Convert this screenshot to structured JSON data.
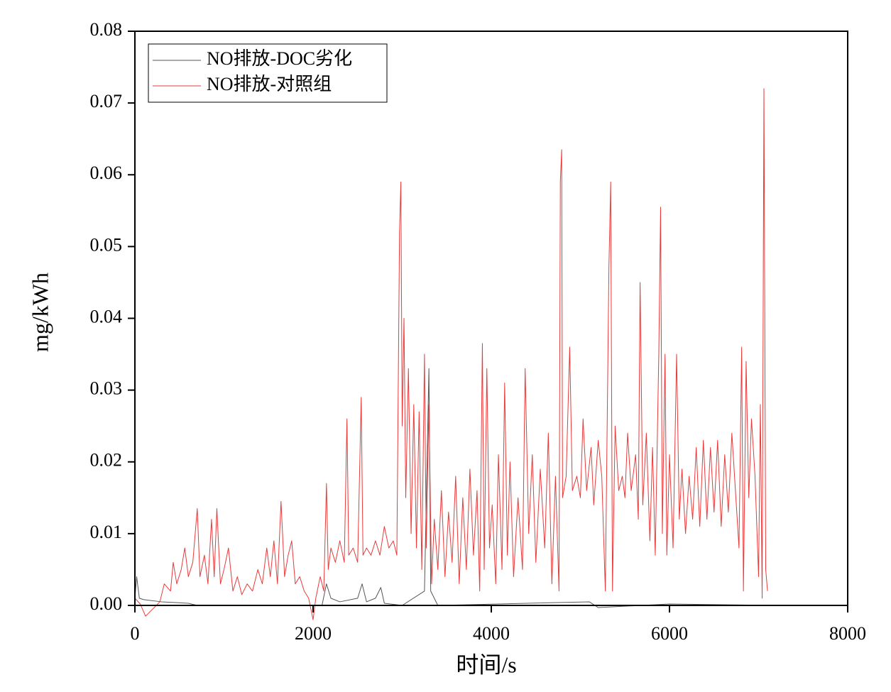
{
  "chart_data": {
    "type": "line",
    "xlabel": "时间/s",
    "ylabel": "mg/kWh",
    "xlim": [
      0,
      8000
    ],
    "xticks": [
      0,
      2000,
      4000,
      6000,
      8000
    ],
    "ylim": [
      0,
      0.08
    ],
    "yticks": [
      {
        "value": 0,
        "label": "0.00"
      },
      0.01,
      0.02,
      0.03,
      0.04,
      0.05,
      0.06,
      0.07,
      0.08
    ],
    "legend": "upper left",
    "series": [
      {
        "name": "NO排放-DOC劣化",
        "color": "#555555",
        "x": [
          0,
          20,
          50,
          100,
          300,
          600,
          700,
          2100,
          2150,
          2200,
          2300,
          2500,
          2550,
          2600,
          2700,
          2760,
          2800,
          3000,
          3250,
          3300,
          3320,
          3400,
          5100,
          5200,
          6000,
          7200
        ],
        "values": [
          0.001,
          0.004,
          0.001,
          0.0008,
          0.0005,
          0.0003,
          0,
          0,
          0.003,
          0.001,
          0.0005,
          0.001,
          0.003,
          0.0005,
          0.001,
          0.0025,
          0.0003,
          0,
          0.002,
          0.033,
          0.002,
          0,
          0.0005,
          -0.0003,
          0.0002,
          0
        ]
      },
      {
        "name": "NO排放-对照组",
        "color": "#e83a3a",
        "x": [
          0,
          60,
          120,
          200,
          280,
          330,
          400,
          430,
          470,
          520,
          560,
          600,
          650,
          700,
          730,
          780,
          820,
          860,
          890,
          920,
          960,
          1000,
          1050,
          1100,
          1150,
          1200,
          1260,
          1320,
          1380,
          1430,
          1480,
          1520,
          1560,
          1600,
          1640,
          1680,
          1720,
          1760,
          1800,
          1850,
          1900,
          1950,
          2000,
          2030,
          2080,
          2120,
          2150,
          2170,
          2200,
          2250,
          2300,
          2350,
          2380,
          2400,
          2450,
          2500,
          2540,
          2560,
          2600,
          2650,
          2700,
          2750,
          2800,
          2850,
          2900,
          2940,
          2970,
          2985,
          3000,
          3020,
          3040,
          3070,
          3100,
          3130,
          3160,
          3190,
          3220,
          3250,
          3270,
          3300,
          3330,
          3360,
          3400,
          3440,
          3480,
          3520,
          3560,
          3600,
          3640,
          3680,
          3720,
          3760,
          3800,
          3840,
          3870,
          3900,
          3920,
          3950,
          3980,
          4010,
          4050,
          4080,
          4120,
          4150,
          4180,
          4210,
          4250,
          4300,
          4350,
          4380,
          4420,
          4460,
          4500,
          4550,
          4600,
          4640,
          4680,
          4720,
          4760,
          4775,
          4790,
          4800,
          4840,
          4880,
          4910,
          4960,
          5000,
          5030,
          5070,
          5120,
          5150,
          5200,
          5240,
          5280,
          5320,
          5340,
          5360,
          5390,
          5430,
          5470,
          5500,
          5530,
          5570,
          5620,
          5650,
          5670,
          5700,
          5740,
          5780,
          5810,
          5840,
          5880,
          5900,
          5920,
          5950,
          5970,
          6000,
          6040,
          6080,
          6110,
          6140,
          6180,
          6220,
          6260,
          6300,
          6340,
          6380,
          6420,
          6460,
          6500,
          6540,
          6580,
          6620,
          6660,
          6700,
          6740,
          6780,
          6810,
          6830,
          6860,
          6890,
          6920,
          6960,
          7000,
          7020,
          7040,
          7060,
          7080,
          7100
        ],
        "values": [
          0.001,
          0.0002,
          -0.0015,
          -0.0005,
          0.0005,
          0.003,
          0.002,
          0.006,
          0.003,
          0.005,
          0.008,
          0.004,
          0.006,
          0.0135,
          0.004,
          0.007,
          0.003,
          0.012,
          0.004,
          0.0135,
          0.003,
          0.005,
          0.008,
          0.002,
          0.004,
          0.0015,
          0.003,
          0.002,
          0.005,
          0.003,
          0.008,
          0.004,
          0.009,
          0.003,
          0.0145,
          0.004,
          0.007,
          0.009,
          0.003,
          0.004,
          0.002,
          0.001,
          -0.002,
          0.001,
          0.004,
          0.002,
          0.017,
          0.005,
          0.008,
          0.006,
          0.009,
          0.006,
          0.026,
          0.007,
          0.008,
          0.006,
          0.029,
          0.007,
          0.008,
          0.007,
          0.009,
          0.007,
          0.011,
          0.008,
          0.009,
          0.007,
          0.052,
          0.059,
          0.025,
          0.04,
          0.015,
          0.033,
          0.01,
          0.028,
          0.008,
          0.027,
          0.005,
          0.035,
          0.008,
          0.028,
          0.003,
          0.012,
          0.005,
          0.016,
          0.004,
          0.013,
          0.006,
          0.018,
          0.003,
          0.015,
          0.005,
          0.019,
          0.007,
          0.016,
          0.002,
          0.0365,
          0.005,
          0.033,
          0.008,
          0.014,
          0.003,
          0.021,
          0.005,
          0.031,
          0.007,
          0.02,
          0.004,
          0.015,
          0.005,
          0.033,
          0.01,
          0.021,
          0.006,
          0.019,
          0.008,
          0.024,
          0.003,
          0.018,
          0.002,
          0.059,
          0.0635,
          0.015,
          0.018,
          0.036,
          0.016,
          0.018,
          0.015,
          0.026,
          0.016,
          0.022,
          0.014,
          0.023,
          0.018,
          0.002,
          0.047,
          0.059,
          0.002,
          0.025,
          0.016,
          0.018,
          0.015,
          0.024,
          0.016,
          0.021,
          0.012,
          0.045,
          0.014,
          0.024,
          0.009,
          0.022,
          0.007,
          0.035,
          0.0555,
          0.01,
          0.035,
          0.007,
          0.021,
          0.008,
          0.035,
          0.012,
          0.019,
          0.01,
          0.018,
          0.012,
          0.022,
          0.011,
          0.023,
          0.012,
          0.022,
          0.013,
          0.023,
          0.011,
          0.021,
          0.013,
          0.024,
          0.016,
          0.008,
          0.036,
          0.002,
          0.034,
          0.015,
          0.026,
          0.018,
          0.004,
          0.028,
          0.001,
          0.072,
          0.005,
          0.002
        ]
      }
    ]
  }
}
